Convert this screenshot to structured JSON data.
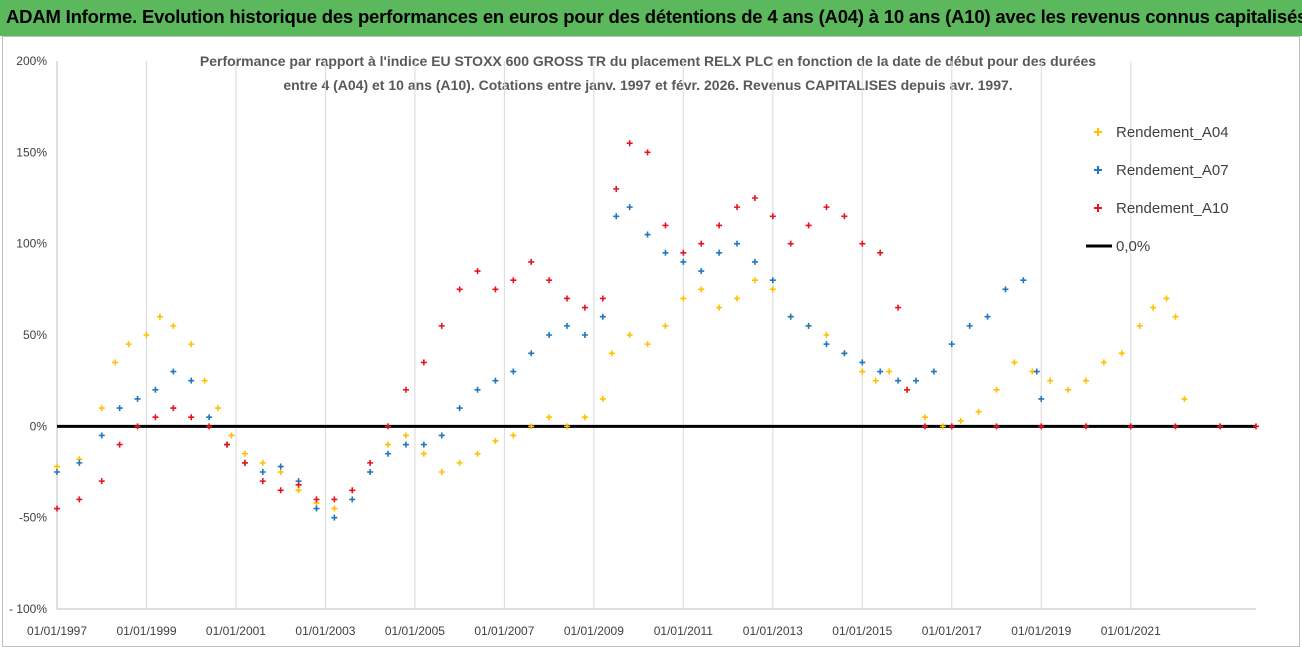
{
  "banner": {
    "title": "ADAM Informe. Evolution historique des performances en euros pour des détentions de 4 ans (A04) à 10 ans (A10) avec les revenus connus capitalisés"
  },
  "chart_data": {
    "type": "scatter",
    "title_lines": [
      "Performance par rapport à l'indice EU STOXX 600 GROSS TR  du placement RELX PLC en fonction de la date de début pour des durées",
      "entre 4 (A04) et 10 ans (A10). Cotations entre janv. 1997 et févr. 2026. Revenus CAPITALISES depuis avr. 1997."
    ],
    "xlabel": "",
    "ylabel": "",
    "xlim": [
      1997.0,
      2023.8
    ],
    "ylim": [
      -100,
      200
    ],
    "y_ticks": [
      {
        "value": 200,
        "label": "200%"
      },
      {
        "value": 150,
        "label": "150%"
      },
      {
        "value": 100,
        "label": "100%"
      },
      {
        "value": 50,
        "label": "50%"
      },
      {
        "value": 0,
        "label": "0%"
      },
      {
        "value": -50,
        "label": "-50%"
      },
      {
        "value": -100,
        "label": "- 100%"
      }
    ],
    "x_ticks": [
      {
        "value": 1997,
        "label": "01/01/1997"
      },
      {
        "value": 1999,
        "label": "01/01/1999"
      },
      {
        "value": 2001,
        "label": "01/01/2001"
      },
      {
        "value": 2003,
        "label": "01/01/2003"
      },
      {
        "value": 2005,
        "label": "01/01/2005"
      },
      {
        "value": 2007,
        "label": "01/01/2007"
      },
      {
        "value": 2009,
        "label": "01/01/2009"
      },
      {
        "value": 2011,
        "label": "01/01/2011"
      },
      {
        "value": 2013,
        "label": "01/01/2013"
      },
      {
        "value": 2015,
        "label": "01/01/2015"
      },
      {
        "value": 2017,
        "label": "01/01/2017"
      },
      {
        "value": 2019,
        "label": "01/01/2019"
      },
      {
        "value": 2021,
        "label": "01/01/2021"
      }
    ],
    "grid_x": true,
    "grid_y": false,
    "legend_position": "right",
    "series": [
      {
        "name": "Rendement_A04",
        "color": "#ffc000",
        "x": [
          1997.0,
          1997.5,
          1998.0,
          1998.3,
          1998.6,
          1999.0,
          1999.3,
          1999.6,
          2000.0,
          2000.3,
          2000.6,
          2000.9,
          2001.2,
          2001.6,
          2002.0,
          2002.4,
          2002.8,
          2003.2,
          2003.6,
          2004.0,
          2004.4,
          2004.8,
          2005.2,
          2005.6,
          2006.0,
          2006.4,
          2006.8,
          2007.2,
          2007.6,
          2008.0,
          2008.4,
          2008.8,
          2009.2,
          2009.4,
          2009.8,
          2010.2,
          2010.6,
          2011.0,
          2011.4,
          2011.8,
          2012.2,
          2012.6,
          2013.0,
          2013.4,
          2013.8,
          2014.2,
          2014.6,
          2015.0,
          2015.3,
          2015.6,
          2016.0,
          2016.4,
          2016.8,
          2017.2,
          2017.6,
          2018.0,
          2018.4,
          2018.8,
          2019.2,
          2019.6,
          2020.0,
          2020.4,
          2020.8,
          2021.2,
          2021.5,
          2021.8,
          2022.0,
          2022.2
        ],
        "values": [
          -22,
          -18,
          10,
          35,
          45,
          50,
          60,
          55,
          45,
          25,
          10,
          -5,
          -15,
          -20,
          -25,
          -35,
          -42,
          -45,
          -35,
          -25,
          -10,
          -5,
          -15,
          -25,
          -20,
          -15,
          -8,
          -5,
          0,
          5,
          0,
          5,
          15,
          40,
          50,
          45,
          55,
          70,
          75,
          65,
          70,
          80,
          75,
          60,
          55,
          50,
          40,
          30,
          25,
          30,
          20,
          5,
          0,
          3,
          8,
          20,
          35,
          30,
          25,
          20,
          25,
          35,
          40,
          55,
          65,
          70,
          60,
          15
        ]
      },
      {
        "name": "Rendement_A07",
        "color": "#1f77c0",
        "x": [
          1997.0,
          1997.5,
          1998.0,
          1998.4,
          1998.8,
          1999.2,
          1999.6,
          2000.0,
          2000.4,
          2000.8,
          2001.2,
          2001.6,
          2002.0,
          2002.4,
          2002.8,
          2003.2,
          2003.6,
          2004.0,
          2004.4,
          2004.8,
          2005.2,
          2005.6,
          2006.0,
          2006.4,
          2006.8,
          2007.2,
          2007.6,
          2008.0,
          2008.4,
          2008.8,
          2009.2,
          2009.5,
          2009.8,
          2010.2,
          2010.6,
          2011.0,
          2011.4,
          2011.8,
          2012.2,
          2012.6,
          2013.0,
          2013.4,
          2013.8,
          2014.2,
          2014.6,
          2015.0,
          2015.4,
          2015.8,
          2016.2,
          2016.6,
          2017.0,
          2017.4,
          2017.8,
          2018.2,
          2018.6,
          2018.9,
          2019.0
        ],
        "values": [
          -25,
          -20,
          -5,
          10,
          15,
          20,
          30,
          25,
          5,
          -10,
          -20,
          -25,
          -22,
          -30,
          -45,
          -50,
          -40,
          -25,
          -15,
          -10,
          -10,
          -5,
          10,
          20,
          25,
          30,
          40,
          50,
          55,
          50,
          60,
          115,
          120,
          105,
          95,
          90,
          85,
          95,
          100,
          90,
          80,
          60,
          55,
          45,
          40,
          35,
          30,
          25,
          25,
          30,
          45,
          55,
          60,
          75,
          80,
          30,
          15
        ]
      },
      {
        "name": "Rendement_A10",
        "color": "#e8141c",
        "x": [
          1997.0,
          1997.5,
          1998.0,
          1998.4,
          1998.8,
          1999.2,
          1999.6,
          2000.0,
          2000.4,
          2000.8,
          2001.2,
          2001.6,
          2002.0,
          2002.4,
          2002.8,
          2003.2,
          2003.6,
          2004.0,
          2004.4,
          2004.8,
          2005.2,
          2005.6,
          2006.0,
          2006.4,
          2006.8,
          2007.2,
          2007.6,
          2008.0,
          2008.4,
          2008.8,
          2009.2,
          2009.5,
          2009.8,
          2010.2,
          2010.6,
          2011.0,
          2011.4,
          2011.8,
          2012.2,
          2012.6,
          2013.0,
          2013.4,
          2013.8,
          2014.2,
          2014.6,
          2015.0,
          2015.4,
          2015.8,
          2016.0,
          2016.4,
          2017.0,
          2018.0,
          2019.0,
          2020.0,
          2021.0,
          2022.0,
          2023.0,
          2023.8
        ],
        "values": [
          -45,
          -40,
          -30,
          -10,
          0,
          5,
          10,
          5,
          0,
          -10,
          -20,
          -30,
          -35,
          -32,
          -40,
          -40,
          -35,
          -20,
          0,
          20,
          35,
          55,
          75,
          85,
          75,
          80,
          90,
          80,
          70,
          65,
          70,
          130,
          155,
          150,
          110,
          95,
          100,
          110,
          120,
          125,
          115,
          100,
          110,
          120,
          115,
          100,
          95,
          65,
          20,
          0,
          0,
          0,
          0,
          0,
          0,
          0,
          0,
          0
        ]
      }
    ],
    "reference_line": {
      "name": "0,0%",
      "value": 0,
      "color": "#000000"
    }
  }
}
